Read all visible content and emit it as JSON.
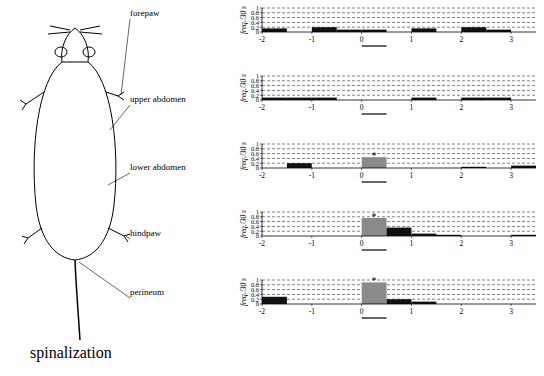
{
  "chart_data": [
    {
      "type": "bar",
      "title": "forepaw",
      "y_label": "freq./30 s",
      "bins": [
        -2,
        -1.5,
        -1,
        -0.5,
        0,
        0.5,
        1,
        1.5,
        2,
        2.5,
        3,
        3.5
      ],
      "values": [
        0.15,
        0,
        0.2,
        0.1,
        0.1,
        0,
        0.15,
        0,
        0.2,
        0.1,
        0
      ],
      "colors": [
        "#111111",
        "#111111",
        "#111111",
        "#111111",
        "#111111",
        "#111111",
        "#111111",
        "#111111",
        "#111111",
        "#111111",
        "#111111"
      ],
      "xlim": [
        -2,
        3.5
      ],
      "xticks": [
        -2,
        -1,
        0,
        1,
        2,
        3
      ],
      "ylim": [
        0,
        1
      ],
      "yticks": [
        0,
        0.2,
        0.4,
        0.6,
        0.8,
        1
      ],
      "grid": true,
      "stimulus": [
        0,
        0.5
      ],
      "annotations": []
    },
    {
      "type": "bar",
      "title": "upper abdomen",
      "y_label": "freq./30 s",
      "bins": [
        -2,
        -1.5,
        -1,
        -0.5,
        0,
        0.5,
        1,
        1.5,
        2,
        2.5,
        3,
        3.5
      ],
      "values": [
        0.1,
        0.1,
        0.1,
        0,
        0,
        0,
        0.1,
        0,
        0.1,
        0.1,
        0
      ],
      "colors": [
        "#111111",
        "#111111",
        "#111111",
        "#111111",
        "#111111",
        "#111111",
        "#111111",
        "#111111",
        "#111111",
        "#111111",
        "#111111"
      ],
      "xlim": [
        -2,
        3.5
      ],
      "xticks": [
        -2,
        -1,
        0,
        1,
        2,
        3
      ],
      "ylim": [
        0,
        1
      ],
      "yticks": [
        0,
        0.2,
        0.4,
        0.6,
        0.8,
        1
      ],
      "grid": true,
      "stimulus": [
        0,
        0.5
      ],
      "annotations": []
    },
    {
      "type": "bar",
      "title": "lower abdomen",
      "y_label": "freq./30 s",
      "bins": [
        -2,
        -1.5,
        -1,
        -0.5,
        0,
        0.5,
        1,
        1.5,
        2,
        2.5,
        3,
        3.5
      ],
      "values": [
        0,
        0.2,
        0,
        0,
        0.45,
        0,
        0,
        0,
        0.05,
        0,
        0.1
      ],
      "colors": [
        "#111111",
        "#111111",
        "#111111",
        "#111111",
        "#8a8a8a",
        "#111111",
        "#111111",
        "#111111",
        "#111111",
        "#111111",
        "#111111"
      ],
      "xlim": [
        -2,
        3.5
      ],
      "xticks": [
        -2,
        -1,
        0,
        1,
        2,
        3
      ],
      "ylim": [
        0,
        1
      ],
      "yticks": [
        0,
        0.2,
        0.4,
        0.6,
        0.8,
        1
      ],
      "grid": true,
      "stimulus": [
        0,
        0.5
      ],
      "annotations": [
        {
          "x": 0.25,
          "y": 0.55,
          "text": "*"
        }
      ]
    },
    {
      "type": "bar",
      "title": "hindpaw",
      "y_label": "freq./30 s",
      "bins": [
        -2,
        -1.5,
        -1,
        -0.5,
        0,
        0.5,
        1,
        1.5,
        2,
        2.5,
        3,
        3.5
      ],
      "values": [
        0,
        0,
        0,
        0,
        0.75,
        0.35,
        0.1,
        0.05,
        0,
        0,
        0.05
      ],
      "colors": [
        "#111111",
        "#111111",
        "#111111",
        "#111111",
        "#8a8a8a",
        "#111111",
        "#111111",
        "#111111",
        "#111111",
        "#111111",
        "#111111"
      ],
      "xlim": [
        -2,
        3.5
      ],
      "xticks": [
        -2,
        -1,
        0,
        1,
        2,
        3
      ],
      "ylim": [
        0,
        1
      ],
      "yticks": [
        0,
        0.2,
        0.4,
        0.6,
        0.8,
        1
      ],
      "grid": true,
      "stimulus": [
        0,
        0.5
      ],
      "annotations": [
        {
          "x": 0.25,
          "y": 0.85,
          "text": "*"
        }
      ]
    },
    {
      "type": "bar",
      "title": "perineum",
      "y_label": "freq./30 s",
      "bins": [
        -2,
        -1.5,
        -1,
        -0.5,
        0,
        0.5,
        1,
        1.5,
        2,
        2.5,
        3,
        3.5
      ],
      "values": [
        0.3,
        0,
        0,
        0,
        0.9,
        0.2,
        0.1,
        0,
        0,
        0,
        0
      ],
      "colors": [
        "#111111",
        "#111111",
        "#111111",
        "#111111",
        "#8a8a8a",
        "#111111",
        "#111111",
        "#111111",
        "#111111",
        "#111111",
        "#111111"
      ],
      "xlim": [
        -2,
        3.5
      ],
      "xticks": [
        -2,
        -1,
        0,
        1,
        2,
        3
      ],
      "ylim": [
        0,
        1
      ],
      "yticks": [
        0,
        0.2,
        0.4,
        0.6,
        0.8,
        1
      ],
      "grid": true,
      "stimulus": [
        0,
        0.5
      ],
      "annotations": [
        {
          "x": 0.25,
          "y": 1,
          "text": "*"
        }
      ]
    }
  ],
  "caption": "spinalization"
}
